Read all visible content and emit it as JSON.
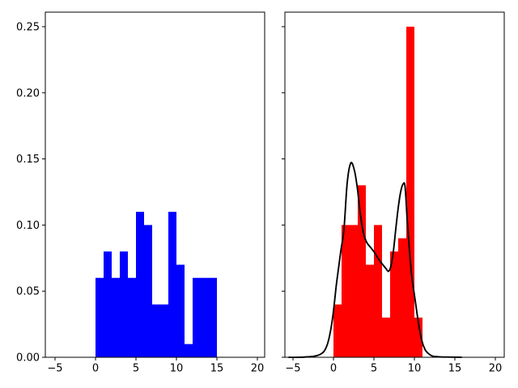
{
  "figure": {
    "background": "#ffffff",
    "spine_color": "#000000",
    "tick_color": "#000000"
  },
  "chart_data": {
    "type": "histogram",
    "title": "",
    "xlabel": "",
    "ylabel": "",
    "grid": false,
    "legend": null,
    "panels": [
      {
        "name": "left-histogram",
        "series_label": "blue density histogram",
        "bar_color": "#0000ff",
        "bin_edges": [
          0,
          1,
          2,
          3,
          4,
          5,
          6,
          7,
          8,
          9,
          10,
          11,
          12,
          13,
          14,
          15
        ],
        "densities": [
          0.06,
          0.08,
          0.06,
          0.08,
          0.06,
          0.11,
          0.1,
          0.04,
          0.04,
          0.11,
          0.07,
          0.01,
          0.06,
          0.06,
          0.06
        ],
        "xlim": [
          -6.2,
          20.9
        ],
        "ylim": [
          0,
          0.261
        ],
        "xticks": [
          -5,
          0,
          5,
          10,
          15,
          20
        ],
        "xtick_labels": [
          "−5",
          "0",
          "5",
          "10",
          "15",
          "20"
        ],
        "yticks": [
          0,
          0.05,
          0.1,
          0.15,
          0.2,
          0.25
        ],
        "ytick_labels": [
          "0.00",
          "0.05",
          "0.10",
          "0.15",
          "0.20",
          "0.25"
        ],
        "show_ytick_labels": true
      },
      {
        "name": "right-histogram",
        "series_label": "red density histogram with black kde curve",
        "bar_color": "#ff0000",
        "bin_edges": [
          0,
          1,
          2,
          3,
          4,
          5,
          6,
          7,
          8,
          9,
          10,
          11
        ],
        "densities": [
          0.04,
          0.1,
          0.1,
          0.13,
          0.07,
          0.1,
          0.03,
          0.08,
          0.09,
          0.25,
          0.03
        ],
        "kde_color": "#000000",
        "kde_points": [
          [
            -5.5,
            0.0
          ],
          [
            -4.2,
            0.0
          ],
          [
            -3.2,
            0.0003
          ],
          [
            -2.4,
            0.0008
          ],
          [
            -1.7,
            0.002
          ],
          [
            -1.1,
            0.005
          ],
          [
            -0.6,
            0.013
          ],
          [
            -0.1,
            0.03
          ],
          [
            0.4,
            0.057
          ],
          [
            0.9,
            0.08
          ],
          [
            1.3,
            0.097
          ],
          [
            1.7,
            0.132
          ],
          [
            2.15,
            0.147
          ],
          [
            2.6,
            0.141
          ],
          [
            2.95,
            0.128
          ],
          [
            3.3,
            0.109
          ],
          [
            3.7,
            0.094
          ],
          [
            4.1,
            0.087
          ],
          [
            4.6,
            0.083
          ],
          [
            5.1,
            0.079
          ],
          [
            5.6,
            0.074
          ],
          [
            6.1,
            0.07
          ],
          [
            6.5,
            0.067
          ],
          [
            6.8,
            0.065
          ],
          [
            7.1,
            0.069
          ],
          [
            7.4,
            0.08
          ],
          [
            7.7,
            0.097
          ],
          [
            8.0,
            0.113
          ],
          [
            8.3,
            0.125
          ],
          [
            8.6,
            0.131
          ],
          [
            8.85,
            0.129
          ],
          [
            9.1,
            0.105
          ],
          [
            9.4,
            0.08
          ],
          [
            9.7,
            0.06
          ],
          [
            10.1,
            0.043
          ],
          [
            10.5,
            0.026
          ],
          [
            10.9,
            0.013
          ],
          [
            11.3,
            0.006
          ],
          [
            11.7,
            0.003
          ],
          [
            12.2,
            0.001
          ],
          [
            12.9,
            0.0004
          ],
          [
            13.8,
            0.0002
          ],
          [
            15.8,
            0.0
          ]
        ],
        "xlim": [
          -6.0,
          21.1
        ],
        "ylim": [
          0,
          0.261
        ],
        "xticks": [
          -5,
          0,
          5,
          10,
          15,
          20
        ],
        "xtick_labels": [
          "−5",
          "0",
          "5",
          "10",
          "15",
          "20"
        ],
        "yticks": [
          0,
          0.05,
          0.1,
          0.15,
          0.2,
          0.25
        ],
        "ytick_labels": [],
        "show_ytick_labels": false
      }
    ]
  }
}
